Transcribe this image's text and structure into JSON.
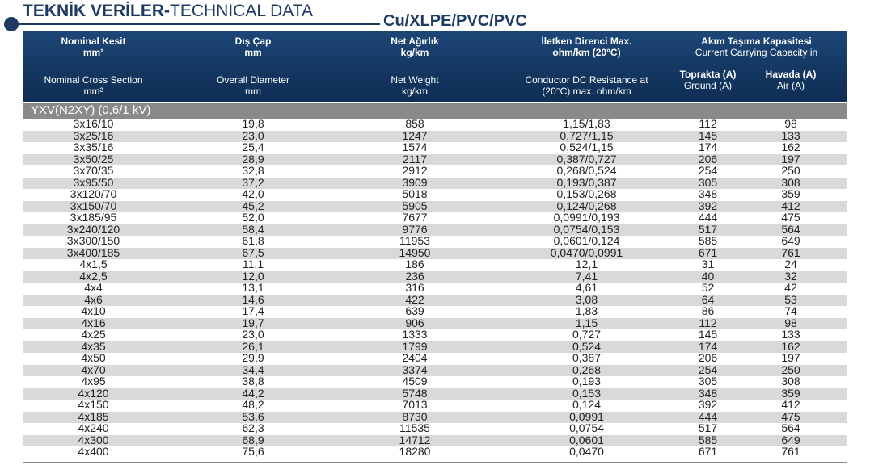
{
  "heading": {
    "bold": "TEKNİK VERİLER-",
    "normal": "TECHNICAL DATA"
  },
  "subtitle": "Cu/XLPE/PVC/PVC",
  "columns": [
    {
      "tr1": "Nominal Kesit",
      "tr2": "mm²",
      "en1": "Nominal Cross Section",
      "en2": "mm²"
    },
    {
      "tr1": "Dış Çap",
      "tr2": "mm",
      "en1": "Overall Diameter",
      "en2": "mm"
    },
    {
      "tr1": "Net Ağırlık",
      "tr2": "kg/km",
      "en1": "Net Weight",
      "en2": "kg/km"
    },
    {
      "tr1": "İletken Direnci Max.",
      "tr2": "ohm/km (20°C)",
      "en1": "Conductor DC Resistance at",
      "en2": "(20°C) max. ohm/km"
    }
  ],
  "capacity": {
    "tr": "Akım Taşıma Kapasitesi",
    "en": "Current Carrying Capacity in",
    "ground_tr": "Toprakta (A)",
    "ground_en": "Ground (A)",
    "air_tr": "Havada (A)",
    "air_en": "Air (A)"
  },
  "section_label": "YXV(N2XY) (0,6/1 kV)",
  "rows": [
    [
      "3x16/10",
      "19,8",
      "858",
      "1,15/1,83",
      "112",
      "98"
    ],
    [
      "3x25/16",
      "23,0",
      "1247",
      "0,727/1,15",
      "145",
      "133"
    ],
    [
      "3x35/16",
      "25,4",
      "1574",
      "0,524/1,15",
      "174",
      "162"
    ],
    [
      "3x50/25",
      "28,9",
      "2117",
      "0,387/0,727",
      "206",
      "197"
    ],
    [
      "3x70/35",
      "32,8",
      "2912",
      "0,268/0,524",
      "254",
      "250"
    ],
    [
      "3x95/50",
      "37,2",
      "3909",
      "0,193/0,387",
      "305",
      "308"
    ],
    [
      "3x120/70",
      "42,0",
      "5018",
      "0,153/0,268",
      "348",
      "359"
    ],
    [
      "3x150/70",
      "45,2",
      "5905",
      "0,124/0,268",
      "392",
      "412"
    ],
    [
      "3x185/95",
      "52,0",
      "7677",
      "0,0991/0,193",
      "444",
      "475"
    ],
    [
      "3x240/120",
      "58,4",
      "9776",
      "0,0754/0,153",
      "517",
      "564"
    ],
    [
      "3x300/150",
      "61,8",
      "11953",
      "0,0601/0,124",
      "585",
      "649"
    ],
    [
      "3x400/185",
      "67,5",
      "14950",
      "0,0470/0,0991",
      "671",
      "761"
    ],
    [
      "4x1,5",
      "11,1",
      "186",
      "12,1",
      "31",
      "24"
    ],
    [
      "4x2,5",
      "12,0",
      "236",
      "7,41",
      "40",
      "32"
    ],
    [
      "4x4",
      "13,1",
      "316",
      "4,61",
      "52",
      "42"
    ],
    [
      "4x6",
      "14,6",
      "422",
      "3,08",
      "64",
      "53"
    ],
    [
      "4x10",
      "17,4",
      "639",
      "1,83",
      "86",
      "74"
    ],
    [
      "4x16",
      "19,7",
      "906",
      "1,15",
      "112",
      "98"
    ],
    [
      "4x25",
      "23,0",
      "1333",
      "0,727",
      "145",
      "133"
    ],
    [
      "4x35",
      "26,1",
      "1799",
      "0,524",
      "174",
      "162"
    ],
    [
      "4x50",
      "29,9",
      "2404",
      "0,387",
      "206",
      "197"
    ],
    [
      "4x70",
      "34,4",
      "3374",
      "0,268",
      "254",
      "250"
    ],
    [
      "4x95",
      "38,8",
      "4509",
      "0,193",
      "305",
      "308"
    ],
    [
      "4x120",
      "44,2",
      "5748",
      "0,153",
      "348",
      "359"
    ],
    [
      "4x150",
      "48,2",
      "7013",
      "0,124",
      "392",
      "412"
    ],
    [
      "4x185",
      "53,6",
      "8730",
      "0,0991",
      "444",
      "475"
    ],
    [
      "4x240",
      "62,3",
      "11535",
      "0,0754",
      "517",
      "564"
    ],
    [
      "4x300",
      "68,9",
      "14712",
      "0,0601",
      "585",
      "649"
    ],
    [
      "4x400",
      "75,6",
      "18280",
      "0,0470",
      "671",
      "761"
    ]
  ]
}
